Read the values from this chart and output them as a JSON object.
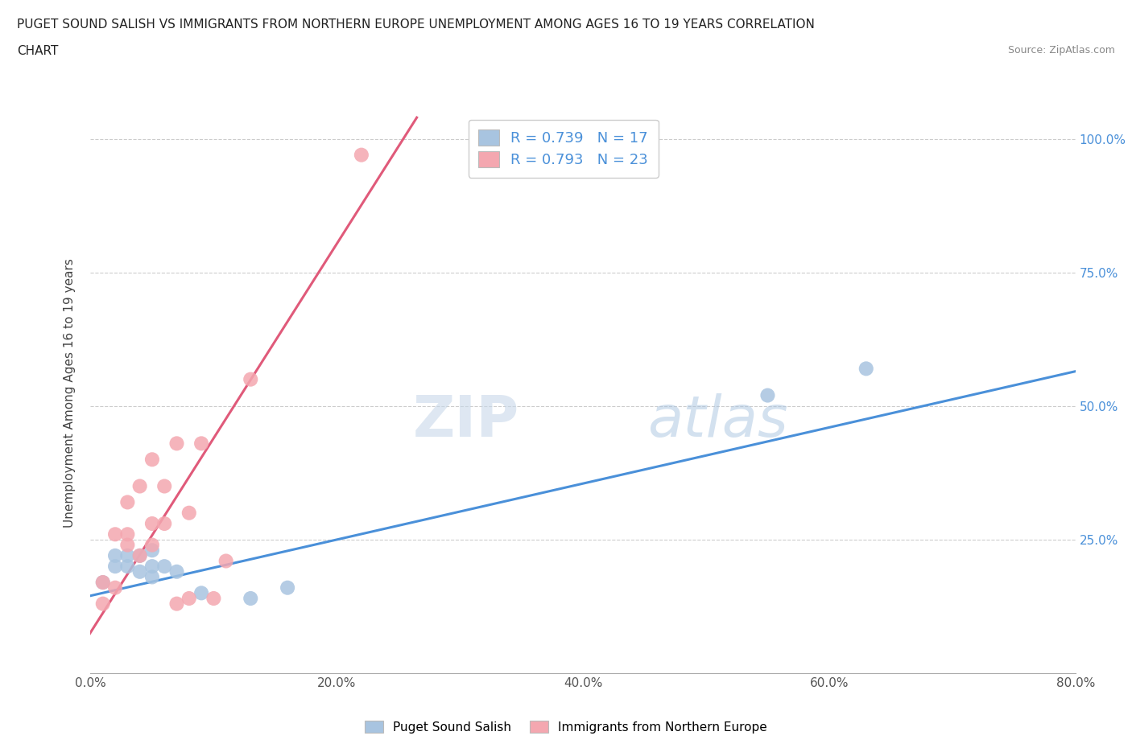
{
  "title_line1": "PUGET SOUND SALISH VS IMMIGRANTS FROM NORTHERN EUROPE UNEMPLOYMENT AMONG AGES 16 TO 19 YEARS CORRELATION",
  "title_line2": "CHART",
  "source": "Source: ZipAtlas.com",
  "ylabel": "Unemployment Among Ages 16 to 19 years",
  "r_blue": 0.739,
  "n_blue": 17,
  "r_pink": 0.793,
  "n_pink": 23,
  "xlim": [
    0.0,
    0.8
  ],
  "ylim": [
    0.0,
    1.05
  ],
  "xticks": [
    0.0,
    0.2,
    0.4,
    0.6,
    0.8
  ],
  "xticklabels": [
    "0.0%",
    "20.0%",
    "40.0%",
    "60.0%",
    "80.0%"
  ],
  "yticks": [
    0.0,
    0.25,
    0.5,
    0.75,
    1.0
  ],
  "color_blue": "#a8c4e0",
  "color_pink": "#f4a7b0",
  "line_blue": "#4a90d9",
  "line_pink": "#e05a7a",
  "watermark_zip": "ZIP",
  "watermark_atlas": "atlas",
  "blue_x": [
    0.01,
    0.02,
    0.02,
    0.03,
    0.03,
    0.04,
    0.04,
    0.05,
    0.05,
    0.05,
    0.06,
    0.07,
    0.09,
    0.13,
    0.16,
    0.55,
    0.63
  ],
  "blue_y": [
    0.17,
    0.2,
    0.22,
    0.2,
    0.22,
    0.19,
    0.22,
    0.18,
    0.2,
    0.23,
    0.2,
    0.19,
    0.15,
    0.14,
    0.16,
    0.52,
    0.57
  ],
  "pink_x": [
    0.01,
    0.01,
    0.02,
    0.02,
    0.03,
    0.03,
    0.03,
    0.04,
    0.04,
    0.05,
    0.05,
    0.05,
    0.06,
    0.06,
    0.07,
    0.07,
    0.08,
    0.08,
    0.09,
    0.1,
    0.11,
    0.13,
    0.22
  ],
  "pink_y": [
    0.13,
    0.17,
    0.16,
    0.26,
    0.24,
    0.26,
    0.32,
    0.22,
    0.35,
    0.24,
    0.28,
    0.4,
    0.28,
    0.35,
    0.43,
    0.13,
    0.3,
    0.14,
    0.43,
    0.14,
    0.21,
    0.55,
    0.97
  ],
  "blue_line_x": [
    0.0,
    0.8
  ],
  "blue_line_y": [
    0.145,
    0.565
  ],
  "pink_line_x": [
    -0.01,
    0.265
  ],
  "pink_line_y": [
    0.04,
    1.04
  ]
}
